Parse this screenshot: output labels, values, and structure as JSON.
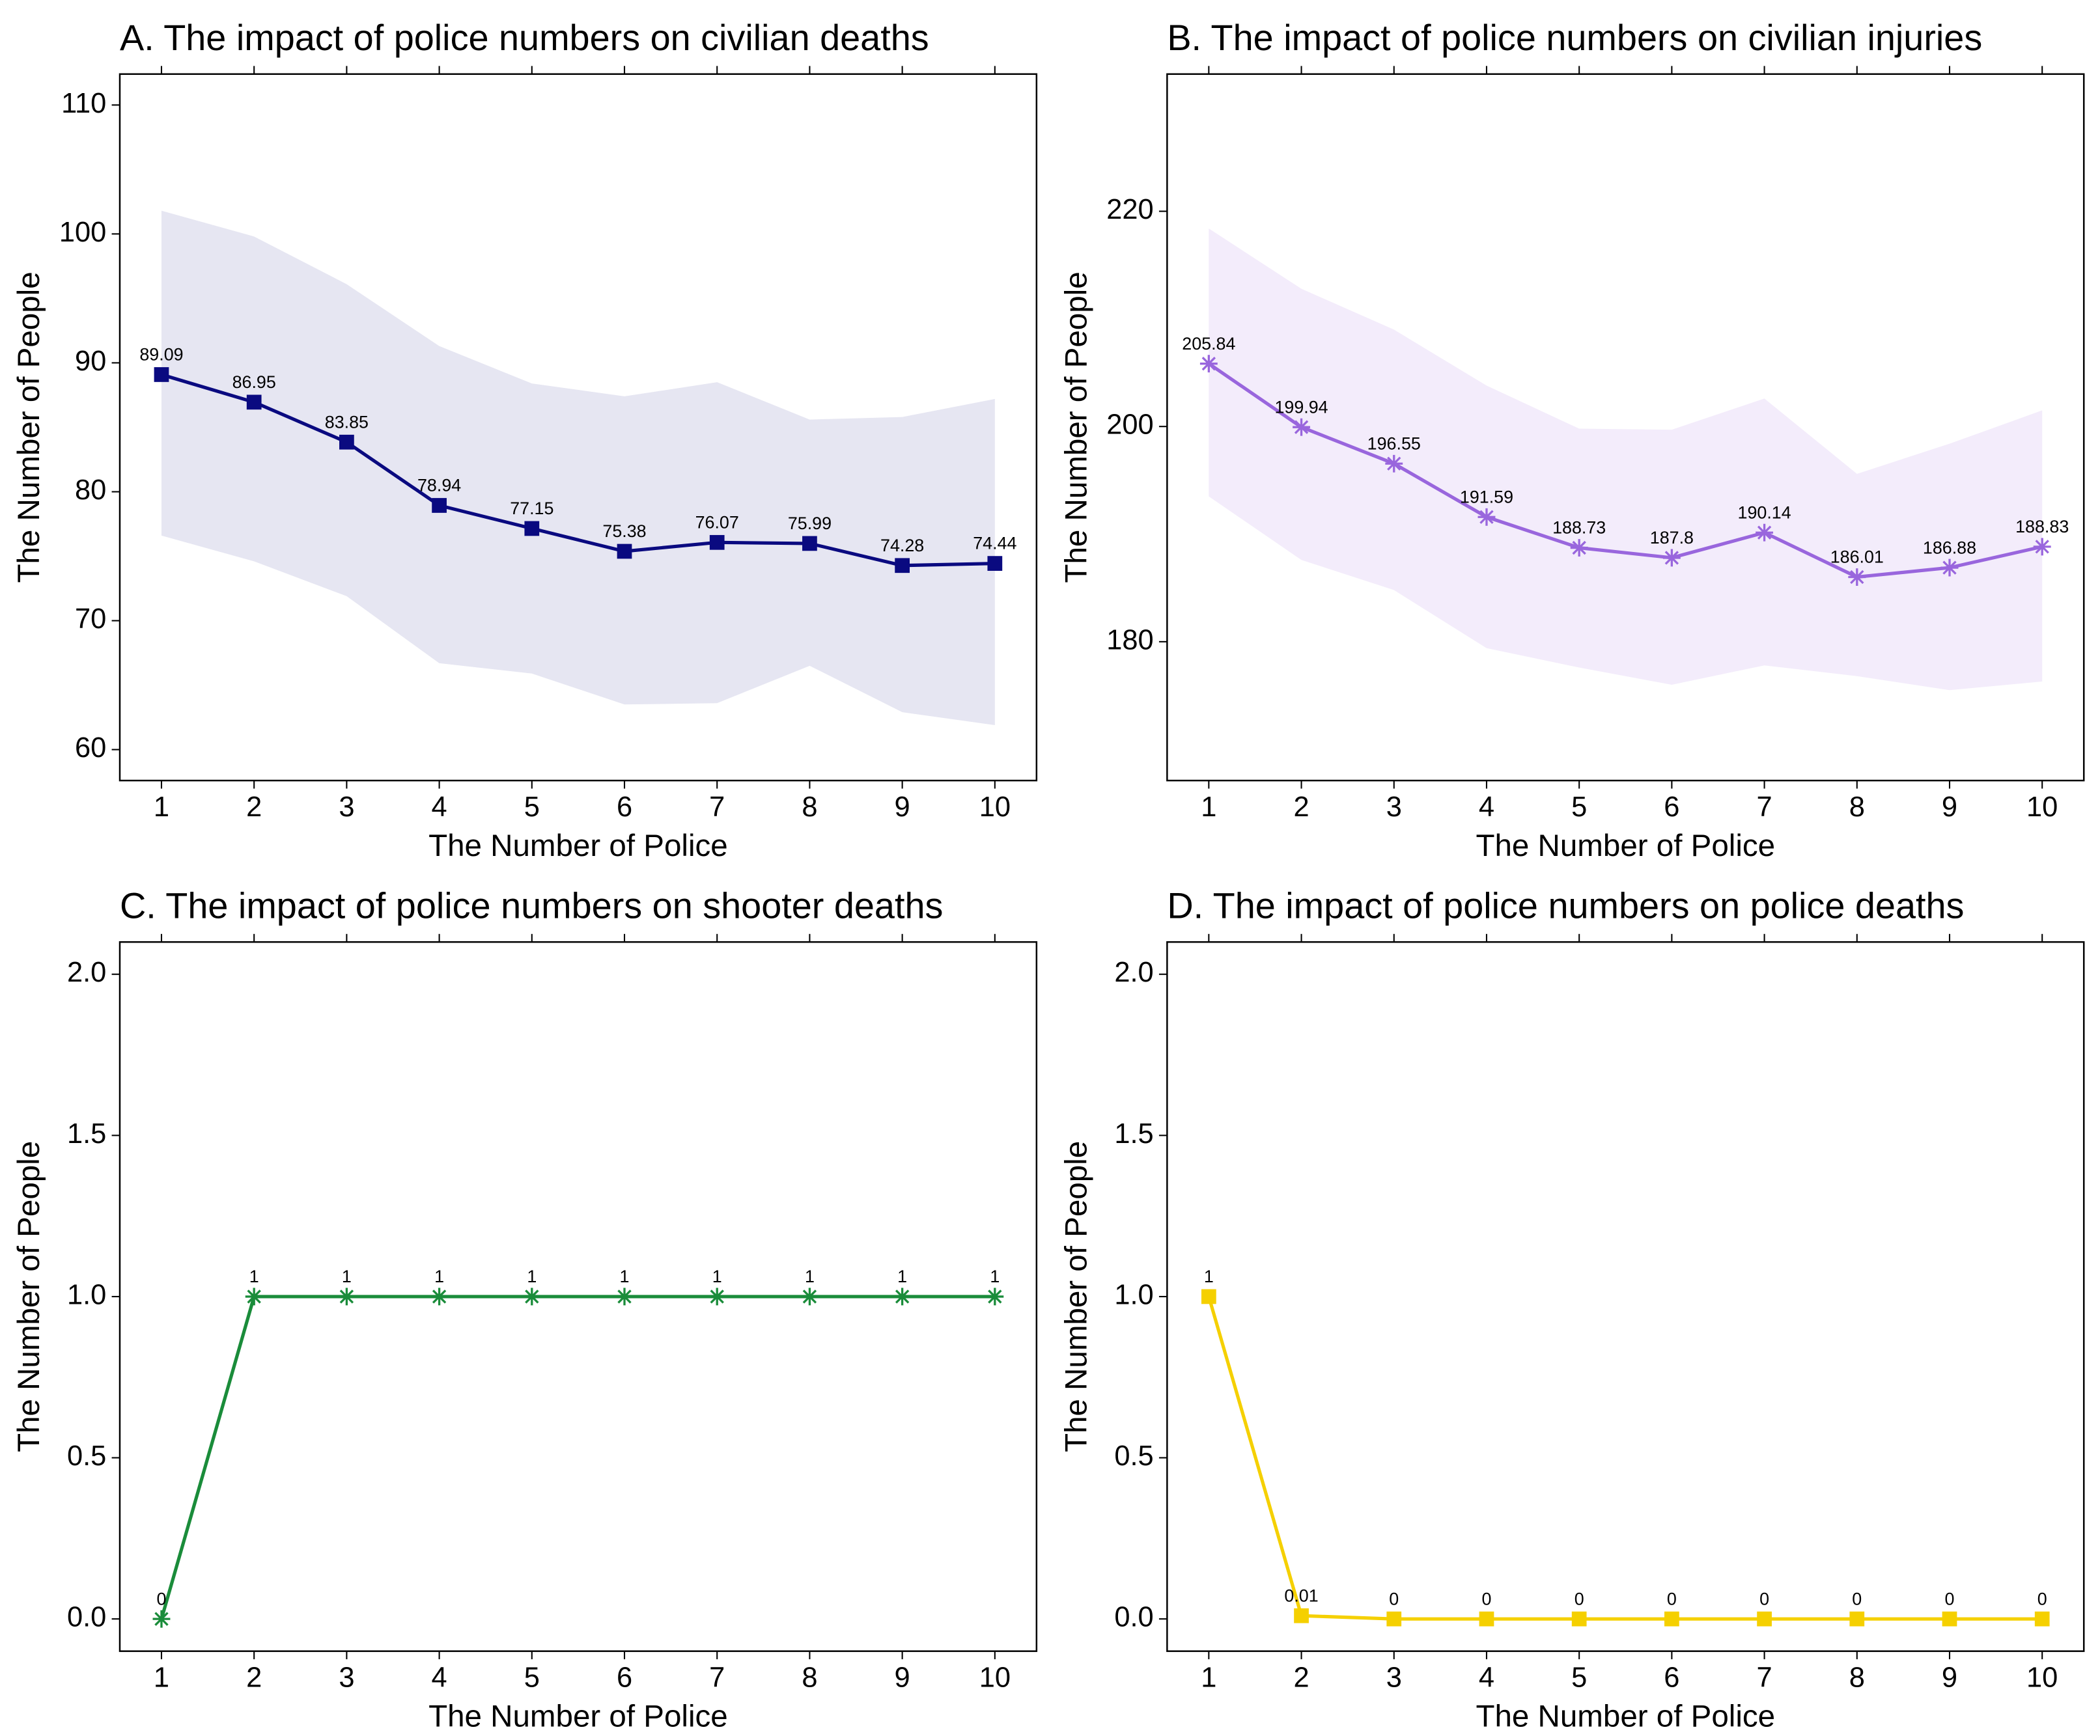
{
  "chart_data": [
    {
      "type": "line",
      "title": "A. The impact of police numbers on civilian deaths",
      "x_label": "The Number of Police",
      "y_label": "The Number of People",
      "x": [
        1,
        2,
        3,
        4,
        5,
        6,
        7,
        8,
        9,
        10
      ],
      "values": [
        89.09,
        86.95,
        83.85,
        78.94,
        77.15,
        75.38,
        76.07,
        75.99,
        74.28,
        74.44
      ],
      "upper": [
        101.8,
        99.8,
        96.1,
        91.3,
        88.4,
        87.4,
        88.5,
        85.6,
        85.8,
        87.2
      ],
      "lower": [
        76.6,
        74.6,
        71.9,
        66.7,
        65.9,
        63.5,
        63.6,
        66.5,
        62.9,
        61.9
      ],
      "color": "#0a0a80",
      "band_color": "#e6e6f2",
      "marker": "square",
      "xlim": [
        0.55,
        10.45
      ],
      "ylim": [
        57.6,
        112.4
      ],
      "xticks": [
        1,
        2,
        3,
        4,
        5,
        6,
        7,
        8,
        9,
        10
      ],
      "yticks": [
        60,
        70,
        80,
        90,
        100,
        110
      ]
    },
    {
      "type": "line",
      "title": "B. The impact of police numbers on civilian injuries",
      "x_label": "The Number of Police",
      "y_label": "The Number of People",
      "x": [
        1,
        2,
        3,
        4,
        5,
        6,
        7,
        8,
        9,
        10
      ],
      "values": [
        205.84,
        199.94,
        196.55,
        191.59,
        188.73,
        187.8,
        190.14,
        186.01,
        186.88,
        188.83
      ],
      "upper": [
        218.4,
        212.8,
        209,
        203.8,
        199.8,
        199.7,
        202.6,
        195.6,
        198.4,
        201.5
      ],
      "lower": [
        193.5,
        187.6,
        184.8,
        179.4,
        177.6,
        176,
        177.8,
        176.8,
        175.5,
        176.3
      ],
      "color": "#9966dd",
      "band_color": "#f3ecfb",
      "marker": "asterisk",
      "xlim": [
        0.55,
        10.45
      ],
      "ylim": [
        167.1,
        232.75
      ],
      "xticks": [
        1,
        2,
        3,
        4,
        5,
        6,
        7,
        8,
        9,
        10
      ],
      "yticks": [
        180,
        200,
        220
      ]
    },
    {
      "type": "line",
      "title": "C. The impact of police numbers on shooter deaths",
      "x_label": "The Number of Police",
      "y_label": "The Number of People",
      "x": [
        1,
        2,
        3,
        4,
        5,
        6,
        7,
        8,
        9,
        10
      ],
      "values": [
        0,
        1,
        1,
        1,
        1,
        1,
        1,
        1,
        1,
        1
      ],
      "color": "#1a8c3a",
      "marker": "asterisk",
      "xlim": [
        0.55,
        10.45
      ],
      "ylim": [
        -0.1,
        2.1
      ],
      "xticks": [
        1,
        2,
        3,
        4,
        5,
        6,
        7,
        8,
        9,
        10
      ],
      "yticks": [
        {
          "value": 0,
          "label": "0.0"
        },
        {
          "value": 0.5,
          "label": "0.5"
        },
        {
          "value": 1,
          "label": "1.0"
        },
        {
          "value": 1.5,
          "label": "1.5"
        },
        {
          "value": 2,
          "label": "2.0"
        }
      ]
    },
    {
      "type": "line",
      "title": "D. The impact of police numbers on police deaths",
      "x_label": "The Number of Police",
      "y_label": "The Number of People",
      "x": [
        1,
        2,
        3,
        4,
        5,
        6,
        7,
        8,
        9,
        10
      ],
      "values": [
        1,
        0.01,
        0,
        0,
        0,
        0,
        0,
        0,
        0,
        0
      ],
      "color": "#f5d000",
      "marker": "square",
      "xlim": [
        0.55,
        10.45
      ],
      "ylim": [
        -0.1,
        2.1
      ],
      "xticks": [
        1,
        2,
        3,
        4,
        5,
        6,
        7,
        8,
        9,
        10
      ],
      "yticks": [
        {
          "value": 0,
          "label": "0.0"
        },
        {
          "value": 0.5,
          "label": "0.5"
        },
        {
          "value": 1,
          "label": "1.0"
        },
        {
          "value": 1.5,
          "label": "1.5"
        },
        {
          "value": 2,
          "label": "2.0"
        }
      ]
    }
  ]
}
